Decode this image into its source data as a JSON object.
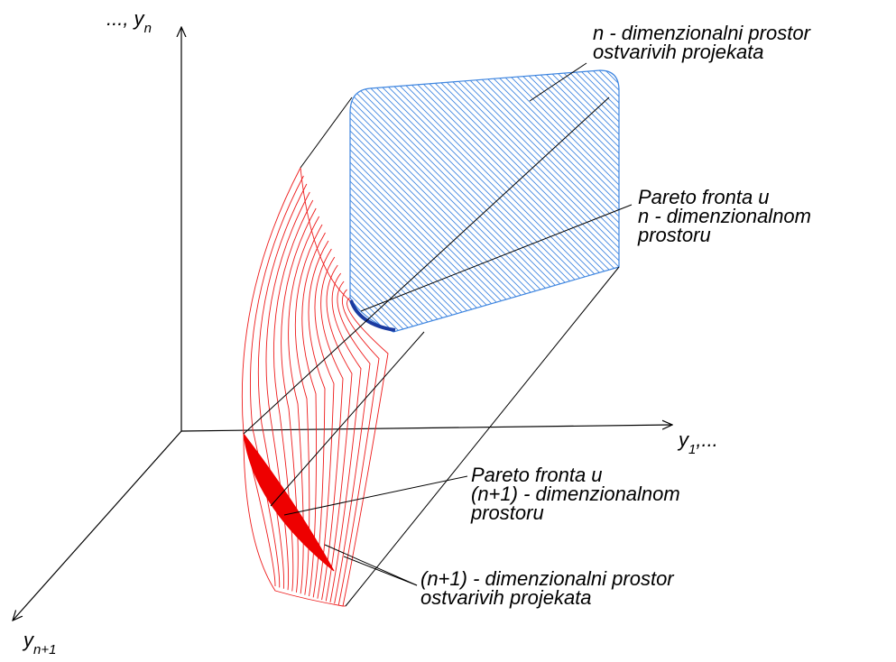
{
  "axes": {
    "y_vertical": {
      "prefix": "..., y",
      "sub": "n"
    },
    "x_horizontal": {
      "prefix": "y",
      "sub": "1",
      "suffix": ",..."
    },
    "z_depth": {
      "prefix": "y",
      "sub": "n+1"
    }
  },
  "labels": {
    "n_space": [
      "n - dimenzionalni prostor",
      "ostvarivih projekata"
    ],
    "pareto_n": [
      "Pareto fronta u",
      "n - dimenzionalnom",
      "prostoru"
    ],
    "pareto_n1": [
      "Pareto fronta u",
      "(n+1) - dimenzionalnom",
      "prostoru"
    ],
    "n1_space": [
      "(n+1) - dimenzionalni prostor",
      "ostvarivih projekata"
    ]
  },
  "colors": {
    "n_region_hatch": "#3f86e0",
    "n_region_border": "#3f86e0",
    "pareto_n_curve": "#1a3aa0",
    "n1_region_mesh": "#ee1b1b",
    "pareto_n1_fill": "#ee0000",
    "axis": "#000000"
  }
}
